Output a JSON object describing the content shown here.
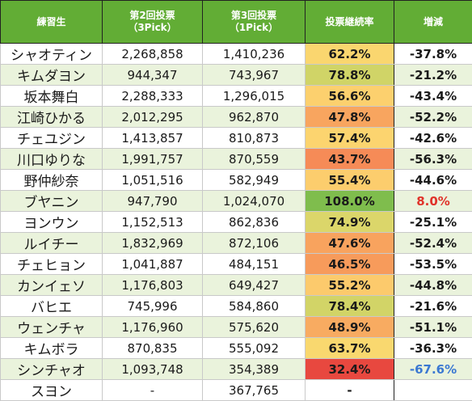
{
  "headers": {
    "name": "練習生",
    "round2_line1": "第2回投票",
    "round2_line2": "（3Pick）",
    "round3_line1": "第3回投票",
    "round3_line2": "（1Pick）",
    "retention": "投票継続率",
    "change": "増減"
  },
  "rows": [
    {
      "name": "シャオティン",
      "round2": "2,268,858",
      "round3": "1,410,236",
      "retention": "62.2%",
      "change": "-37.8%",
      "color": "#fad66f"
    },
    {
      "name": "キムダヨン",
      "round2": "944,347",
      "round3": "743,967",
      "retention": "78.8%",
      "change": "-21.2%",
      "color": "#d0d467"
    },
    {
      "name": "坂本舞白",
      "round2": "2,288,333",
      "round3": "1,296,015",
      "retention": "56.6%",
      "change": "-43.4%",
      "color": "#fcd06e"
    },
    {
      "name": "江崎ひかる",
      "round2": "2,012,295",
      "round3": "962,870",
      "retention": "47.8%",
      "change": "-52.2%",
      "color": "#f8a55f"
    },
    {
      "name": "チェユジン",
      "round2": "1,413,857",
      "round3": "810,873",
      "retention": "57.4%",
      "change": "-42.6%",
      "color": "#fcd46f"
    },
    {
      "name": "川口ゆりな",
      "round2": "1,991,757",
      "round3": "870,559",
      "retention": "43.7%",
      "change": "-56.3%",
      "color": "#f68b57"
    },
    {
      "name": "野仲紗奈",
      "round2": "1,051,516",
      "round3": "582,949",
      "retention": "55.4%",
      "change": "-44.6%",
      "color": "#fccd6d"
    },
    {
      "name": "ブヤニン",
      "round2": "947,790",
      "round3": "1,024,070",
      "retention": "108.0%",
      "change": "8.0%",
      "color": "#7fbd4d"
    },
    {
      "name": "ヨンウン",
      "round2": "1,152,513",
      "round3": "862,836",
      "retention": "74.9%",
      "change": "-25.1%",
      "color": "#dbd66a"
    },
    {
      "name": "ルイチー",
      "round2": "1,832,969",
      "round3": "872,106",
      "retention": "47.6%",
      "change": "-52.4%",
      "color": "#f8a35e"
    },
    {
      "name": "チェヒョン",
      "round2": "1,041,887",
      "round3": "484,151",
      "retention": "46.5%",
      "change": "-53.5%",
      "color": "#f79b5b"
    },
    {
      "name": "カンイェソ",
      "round2": "1,176,803",
      "round3": "649,427",
      "retention": "55.2%",
      "change": "-44.8%",
      "color": "#fcca6c"
    },
    {
      "name": "バヒエ",
      "round2": "745,996",
      "round3": "584,860",
      "retention": "78.4%",
      "change": "-21.6%",
      "color": "#d2d467"
    },
    {
      "name": "ウェンチャ",
      "round2": "1,176,960",
      "round3": "575,620",
      "retention": "48.9%",
      "change": "-51.1%",
      "color": "#f8ab61"
    },
    {
      "name": "キムボラ",
      "round2": "870,835",
      "round3": "555,092",
      "retention": "63.7%",
      "change": "-36.3%",
      "color": "#f9d86f"
    },
    {
      "name": "シンチャオ",
      "round2": "1,093,748",
      "round3": "354,389",
      "retention": "32.4%",
      "change": "-67.6%",
      "color": "#e8483f"
    },
    {
      "name": "スヨン",
      "round2": "-",
      "round3": "367,765",
      "retention": "-",
      "change": "",
      "color": ""
    }
  ]
}
